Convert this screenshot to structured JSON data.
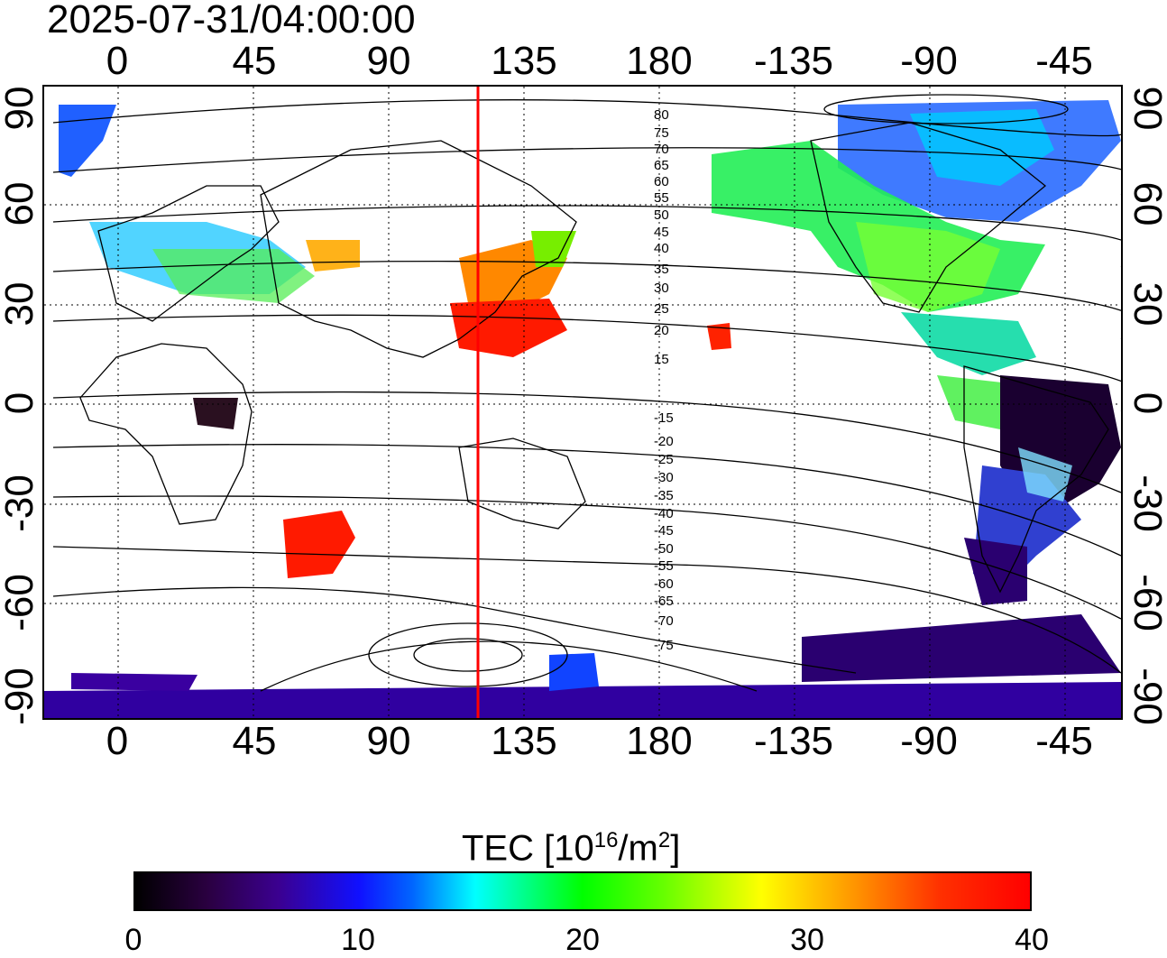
{
  "timestamp": "2025-07-31/04:00:00",
  "map": {
    "top_lon_labels": [
      "0",
      "45",
      "90",
      "135",
      "180",
      "-135",
      "-90",
      "-45"
    ],
    "bottom_lon_labels": [
      "0",
      "45",
      "90",
      "135",
      "180",
      "-135",
      "-90",
      "-45"
    ],
    "left_lat_labels": [
      "90",
      "60",
      "30",
      "0",
      "-30",
      "-60",
      "-90"
    ],
    "right_lat_labels": [
      "90",
      "60",
      "30",
      "0",
      "-30",
      "-60",
      "-90"
    ],
    "contour_labels": [
      "80",
      "75",
      "70",
      "65",
      "60",
      "55",
      "50",
      "45",
      "40",
      "35",
      "30",
      "25",
      "20",
      "15",
      "-15",
      "-20",
      "-25",
      "-30",
      "-35",
      "-40",
      "-45",
      "-50",
      "-55",
      "-60",
      "-65",
      "-70",
      "-75"
    ],
    "marker_line_color": "#ff0000",
    "grid_style": "dotted"
  },
  "colorbar": {
    "title_prefix": "TEC  [10",
    "title_exp1": "16",
    "title_mid": "/m",
    "title_exp2": "2",
    "title_suffix": "]",
    "tick_labels": [
      "0",
      "10",
      "20",
      "30",
      "40"
    ],
    "min": 0,
    "max": 40,
    "colors": [
      "#000000",
      "#3b0090",
      "#1010ff",
      "#00ffff",
      "#00ff00",
      "#ffff00",
      "#ff9900",
      "#ff0000"
    ]
  }
}
